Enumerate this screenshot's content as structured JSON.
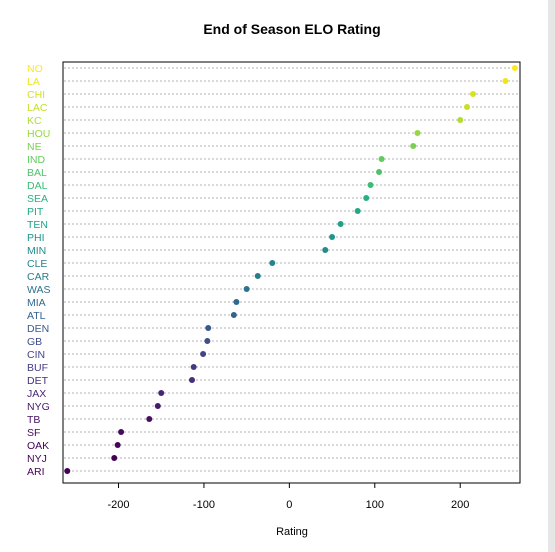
{
  "chart_data": {
    "type": "scatter",
    "title": "End of Season ELO Rating",
    "xlabel": "Rating",
    "ylabel": "",
    "xlim": [
      -265,
      270
    ],
    "xticks": [
      "-200",
      "-100",
      "0",
      "100",
      "200"
    ],
    "xtick_values": [
      -200,
      -100,
      0,
      100,
      200
    ],
    "grid": "dotted horizontal lines at each team",
    "points": [
      {
        "team": "NO",
        "rating": 264,
        "color": "#FDE725"
      },
      {
        "team": "LA",
        "rating": 253,
        "color": "#EFE51C"
      },
      {
        "team": "CHI",
        "rating": 215,
        "color": "#D8E219"
      },
      {
        "team": "LAC",
        "rating": 208,
        "color": "#C8E020"
      },
      {
        "team": "KC",
        "rating": 200,
        "color": "#B0DD2F"
      },
      {
        "team": "HOU",
        "rating": 150,
        "color": "#95D840"
      },
      {
        "team": "NE",
        "rating": 145,
        "color": "#7AD151"
      },
      {
        "team": "IND",
        "rating": 108,
        "color": "#62CB5F"
      },
      {
        "team": "BAL",
        "rating": 105,
        "color": "#4FC16B"
      },
      {
        "team": "DAL",
        "rating": 95,
        "color": "#3BBB75"
      },
      {
        "team": "SEA",
        "rating": 90,
        "color": "#2AB07F"
      },
      {
        "team": "PIT",
        "rating": 80,
        "color": "#22A884"
      },
      {
        "team": "TEN",
        "rating": 60,
        "color": "#1FA088"
      },
      {
        "team": "PHI",
        "rating": 50,
        "color": "#1F968B"
      },
      {
        "team": "MIN",
        "rating": 42,
        "color": "#228C8D"
      },
      {
        "team": "CLE",
        "rating": -20,
        "color": "#25838E"
      },
      {
        "team": "CAR",
        "rating": -37,
        "color": "#287C8E"
      },
      {
        "team": "WAS",
        "rating": -50,
        "color": "#2C728E"
      },
      {
        "team": "MIA",
        "rating": -62,
        "color": "#30698E"
      },
      {
        "team": "ATL",
        "rating": -65,
        "color": "#33638D"
      },
      {
        "team": "DEN",
        "rating": -95,
        "color": "#38598C"
      },
      {
        "team": "GB",
        "rating": -96,
        "color": "#3D4E8A"
      },
      {
        "team": "CIN",
        "rating": -101,
        "color": "#404588"
      },
      {
        "team": "BUF",
        "rating": -112,
        "color": "#443A83"
      },
      {
        "team": "DET",
        "rating": -114,
        "color": "#472F7D"
      },
      {
        "team": "JAX",
        "rating": -150,
        "color": "#482576"
      },
      {
        "team": "NYG",
        "rating": -154,
        "color": "#481A6C"
      },
      {
        "team": "TB",
        "rating": -164,
        "color": "#470E61"
      },
      {
        "team": "SF",
        "rating": -197,
        "color": "#460A5D"
      },
      {
        "team": "OAK",
        "rating": -201,
        "color": "#450559"
      },
      {
        "team": "NYJ",
        "rating": -205,
        "color": "#440256"
      },
      {
        "team": "ARI",
        "rating": -260,
        "color": "#440154"
      }
    ]
  }
}
